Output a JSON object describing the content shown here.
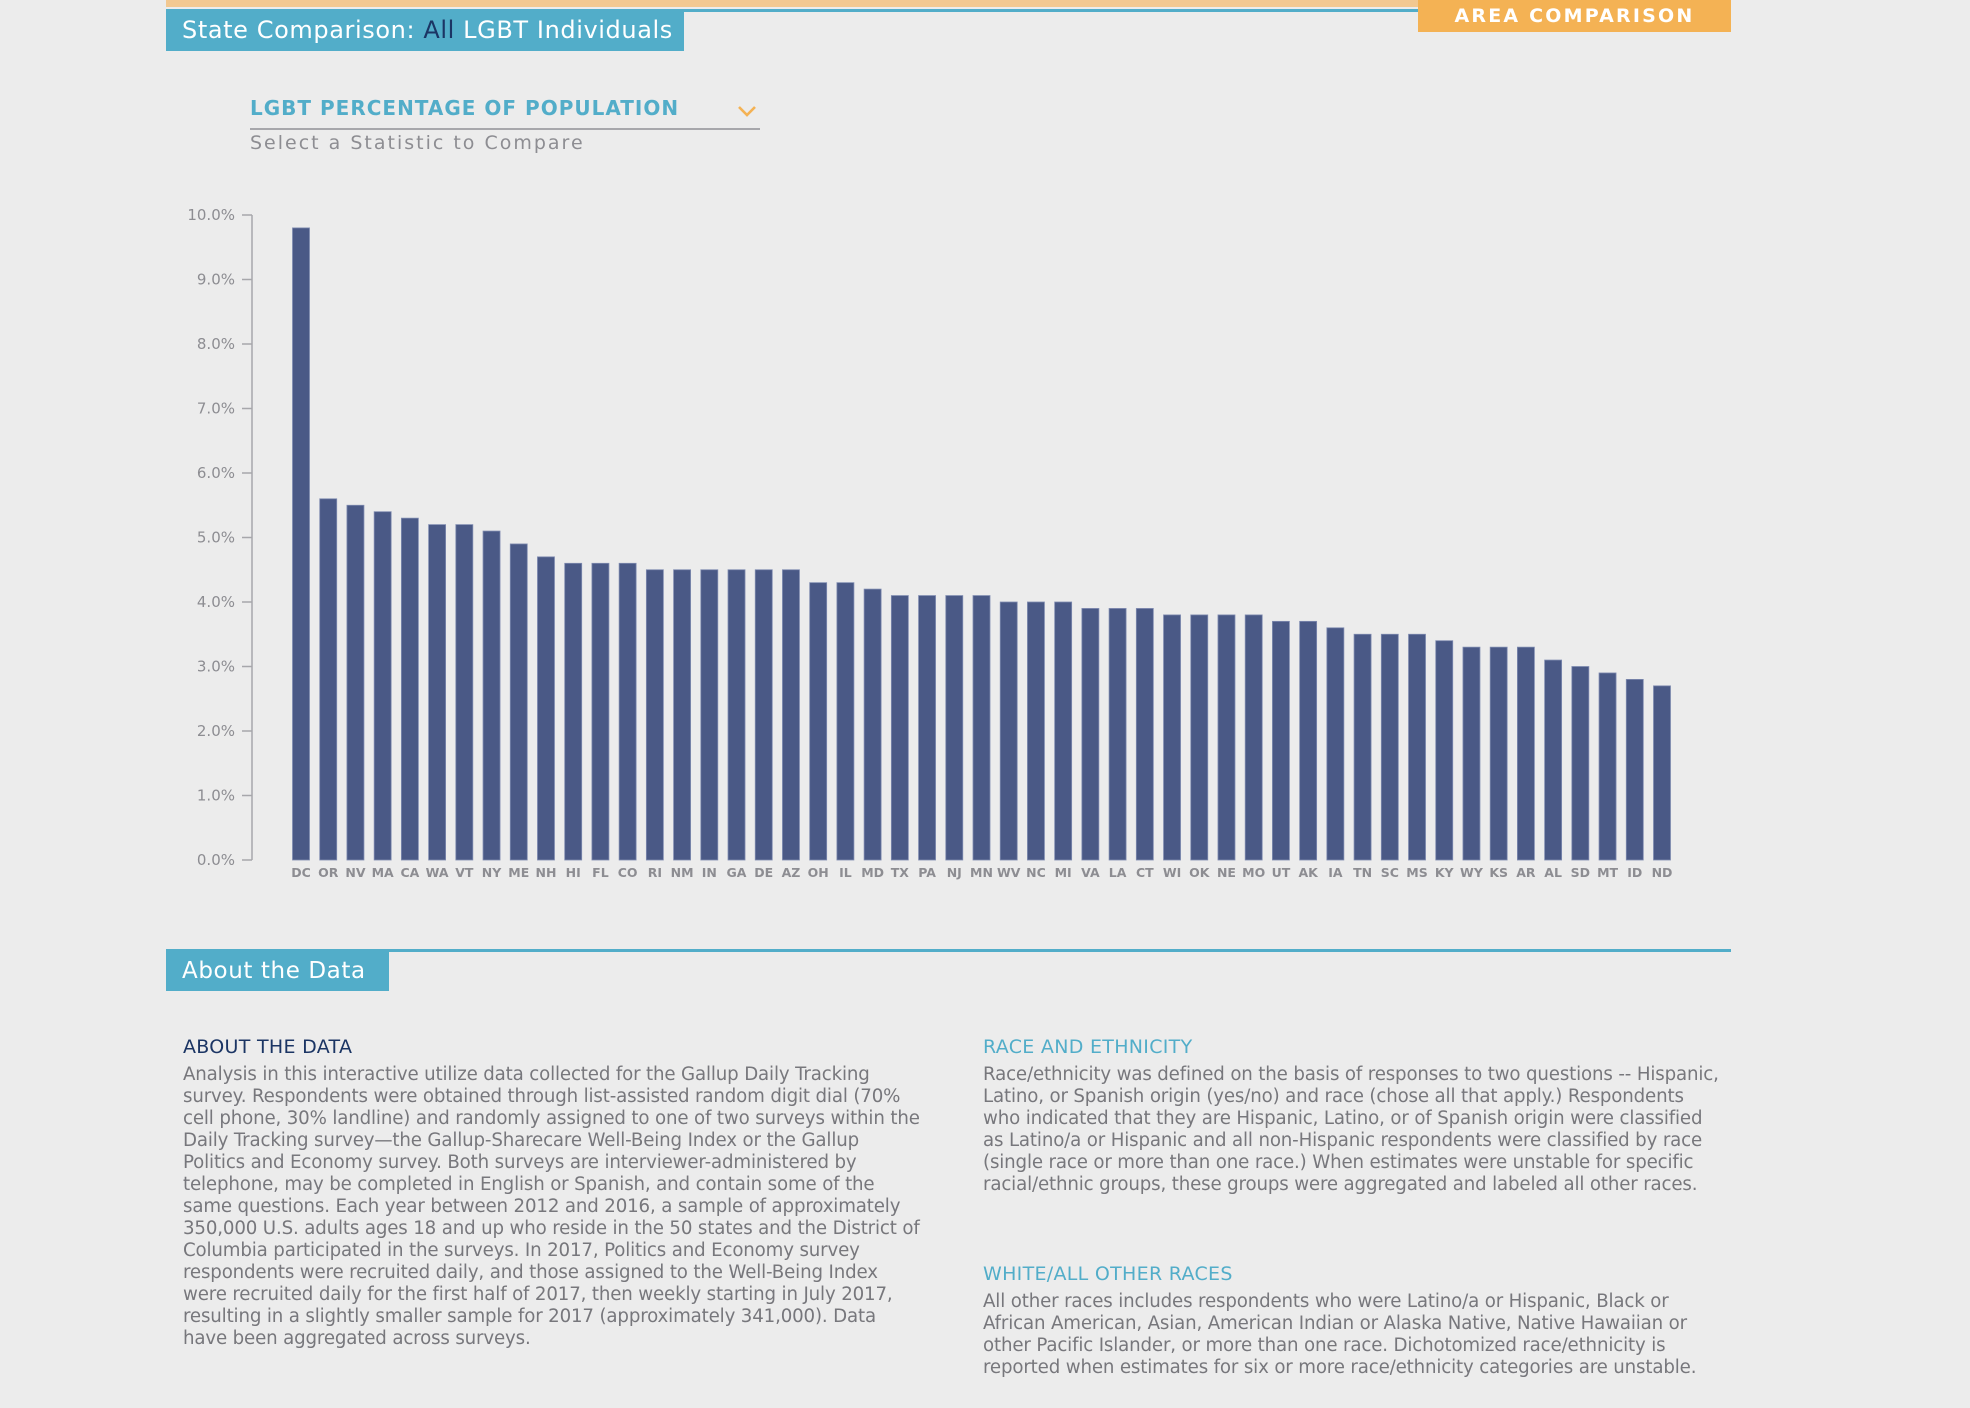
{
  "header": {
    "title_prefix": "State Comparison: ",
    "title_highlight": "All",
    "title_suffix": " LGBT Individuals",
    "area_comparison_tab": "AREA COMPARISON"
  },
  "statistic_select": {
    "selected": "LGBT PERCENTAGE OF POPULATION",
    "hint": "Select a Statistic to Compare",
    "icon": "chevron-down-icon"
  },
  "colors": {
    "accent_blue": "#52adc9",
    "accent_orange": "#f4b254",
    "bar": "#4a5986",
    "navy_text": "#1b3564"
  },
  "chart_data": {
    "type": "bar",
    "title": "LGBT PERCENTAGE OF POPULATION",
    "xlabel": "",
    "ylabel": "",
    "ylim": [
      0,
      10
    ],
    "yticks": [
      "0.0%",
      "1.0%",
      "2.0%",
      "3.0%",
      "4.0%",
      "5.0%",
      "6.0%",
      "7.0%",
      "8.0%",
      "9.0%",
      "10.0%"
    ],
    "grid": false,
    "legend": "none",
    "categories": [
      "DC",
      "OR",
      "NV",
      "MA",
      "CA",
      "WA",
      "VT",
      "NY",
      "ME",
      "NH",
      "HI",
      "FL",
      "CO",
      "RI",
      "NM",
      "IN",
      "GA",
      "DE",
      "AZ",
      "OH",
      "IL",
      "MD",
      "TX",
      "PA",
      "NJ",
      "MN",
      "WV",
      "NC",
      "MI",
      "VA",
      "LA",
      "CT",
      "WI",
      "OK",
      "NE",
      "MO",
      "UT",
      "AK",
      "IA",
      "TN",
      "SC",
      "MS",
      "KY",
      "WY",
      "KS",
      "AR",
      "AL",
      "SD",
      "MT",
      "ID",
      "ND"
    ],
    "values": [
      9.8,
      5.6,
      5.5,
      5.4,
      5.3,
      5.2,
      5.2,
      5.1,
      4.9,
      4.7,
      4.6,
      4.6,
      4.6,
      4.5,
      4.5,
      4.5,
      4.5,
      4.5,
      4.5,
      4.3,
      4.3,
      4.2,
      4.1,
      4.1,
      4.1,
      4.1,
      4.0,
      4.0,
      4.0,
      3.9,
      3.9,
      3.9,
      3.8,
      3.8,
      3.8,
      3.8,
      3.7,
      3.7,
      3.6,
      3.5,
      3.5,
      3.5,
      3.4,
      3.3,
      3.3,
      3.3,
      3.1,
      3.0,
      2.9,
      2.8,
      2.7
    ],
    "unit": "%"
  },
  "about": {
    "section_title": "About the Data",
    "about_heading": "ABOUT THE DATA",
    "about_text": "Analysis in this interactive utilize data collected for the Gallup Daily Tracking survey. Respondents were obtained through list-assisted random digit dial (70% cell phone, 30% landline) and randomly assigned to one of two surveys within the Daily Tracking survey—the Gallup-Sharecare Well-Being Index or the Gallup Politics and Economy survey. Both surveys are interviewer-administered by telephone, may be completed in English or Spanish, and contain some of the same questions. Each year between 2012 and 2016, a sample of approximately 350,000 U.S. adults ages 18 and up who reside in the 50 states and the District of Columbia participated in the surveys. In 2017, Politics and Economy survey respondents were recruited daily, and those assigned to the Well-Being Index were recruited daily for the first half of 2017, then weekly starting in July 2017, resulting in a slightly smaller sample for 2017 (approximately 341,000). Data have been aggregated across surveys.",
    "race_heading": "RACE AND ETHNICITY",
    "race_text": "Race/ethnicity was defined on the basis of responses to two questions -- Hispanic, Latino, or Spanish origin (yes/no) and race (chose all that apply.) Respondents who indicated that they are Hispanic, Latino, or of Spanish origin were classified as Latino/a or Hispanic and all non-Hispanic respondents were classified by race (single race or more than one race.) When estimates were unstable for specific racial/ethnic groups, these groups were aggregated and labeled all other races.",
    "white_heading": "WHITE/ALL OTHER RACES",
    "white_text": "All other races includes respondents who were Latino/a or Hispanic, Black or African American, Asian, American Indian or Alaska Native, Native Hawaiian or other Pacific Islander, or more than one race. Dichotomized race/ethnicity is reported when estimates for six or more race/ethnicity categories are unstable."
  }
}
